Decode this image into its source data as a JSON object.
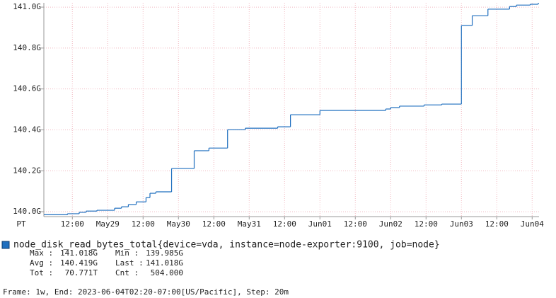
{
  "chart_data": {
    "type": "line",
    "step": true,
    "x_axis_label": "PT",
    "xlim": [
      0,
      504
    ],
    "xticks": [
      {
        "value": 29,
        "label": "12:00"
      },
      {
        "value": 65,
        "label": "May29"
      },
      {
        "value": 101,
        "label": "12:00"
      },
      {
        "value": 137,
        "label": "May30"
      },
      {
        "value": 173,
        "label": "12:00"
      },
      {
        "value": 209,
        "label": "May31"
      },
      {
        "value": 245,
        "label": "12:00"
      },
      {
        "value": 281,
        "label": "Jun01"
      },
      {
        "value": 317,
        "label": "12:00"
      },
      {
        "value": 353,
        "label": "Jun02"
      },
      {
        "value": 389,
        "label": "12:00"
      },
      {
        "value": 425,
        "label": "Jun03"
      },
      {
        "value": 461,
        "label": "12:00"
      },
      {
        "value": 497,
        "label": "Jun04"
      }
    ],
    "ylim": [
      139.976,
      141.021
    ],
    "yticks": [
      {
        "value": 140.0,
        "label": "140.0G"
      },
      {
        "value": 140.2,
        "label": "140.2G"
      },
      {
        "value": 140.4,
        "label": "140.4G"
      },
      {
        "value": 140.6,
        "label": "140.6G"
      },
      {
        "value": 140.8,
        "label": "140.8G"
      },
      {
        "value": 141.0,
        "label": "141.0G"
      }
    ],
    "grid": true,
    "x": [
      0,
      24,
      36,
      43,
      54,
      72,
      79,
      86,
      94,
      104,
      108,
      114,
      130,
      153,
      168,
      187,
      205,
      238,
      251,
      281,
      348,
      353,
      362,
      387,
      405,
      425,
      436,
      452,
      474,
      481,
      495,
      503
    ],
    "series": [
      {
        "name": "node_disk_read_bytes_total{device=vda, instance=node-exporter:9100, job=node}",
        "color": "#1f6fbf",
        "values": [
          139.985,
          139.99,
          139.997,
          140.003,
          140.007,
          140.017,
          140.024,
          140.035,
          140.048,
          140.069,
          140.09,
          140.097,
          140.211,
          140.298,
          140.311,
          140.401,
          140.408,
          140.415,
          140.474,
          140.495,
          140.502,
          140.509,
          140.516,
          140.522,
          140.526,
          140.91,
          140.958,
          140.99,
          141.003,
          141.01,
          141.014,
          141.018
        ]
      }
    ],
    "stats": [
      [
        {
          "label": "Max :",
          "value": "141.018G"
        },
        {
          "label": "Min :",
          "value": "139.985G"
        }
      ],
      [
        {
          "label": "Avg :",
          "value": "140.419G"
        },
        {
          "label": "Last :",
          "value": "141.018G"
        }
      ],
      [
        {
          "label": "Tot :",
          "value": "70.771T"
        },
        {
          "label": "Cnt :",
          "value": "504.000"
        }
      ]
    ],
    "footer": "Frame: 1w, End: 2023-06-04T02:20-07:00[US/Pacific], Step: 20m"
  }
}
